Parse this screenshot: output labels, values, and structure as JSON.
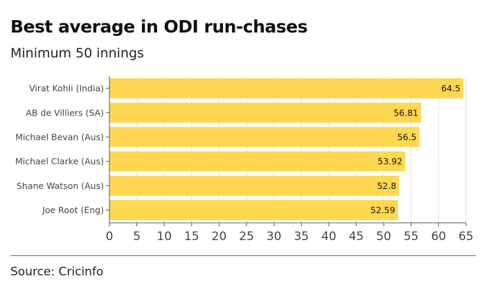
{
  "header": {
    "title": "Best average in ODI run-chases",
    "subtitle": "Minimum 50 innings"
  },
  "footer": {
    "source": "Source: Cricinfo"
  },
  "colors": {
    "bar": "#ffd751",
    "grid": "#e2e2e2",
    "axis": "#555555"
  },
  "chart_data": {
    "type": "bar",
    "orientation": "horizontal",
    "title": "Best average in ODI run-chases",
    "subtitle": "Minimum 50 innings",
    "xlabel": "",
    "ylabel": "",
    "xlim": [
      0,
      65
    ],
    "ticks": [
      0,
      5,
      10,
      15,
      20,
      25,
      30,
      35,
      40,
      45,
      50,
      55,
      60,
      65
    ],
    "grid": "vertical",
    "categories": [
      "Virat Kohli (India)",
      "AB de Villiers (SA)",
      "Michael Bevan (Aus)",
      "Michael Clarke (Aus)",
      "Shane Watson (Aus)",
      "Joe Root (Eng)"
    ],
    "values": [
      64.5,
      56.81,
      56.5,
      53.92,
      52.8,
      52.59
    ],
    "value_labels": [
      "64.5",
      "56.81",
      "56.5",
      "53.92",
      "52.8",
      "52.59"
    ]
  }
}
